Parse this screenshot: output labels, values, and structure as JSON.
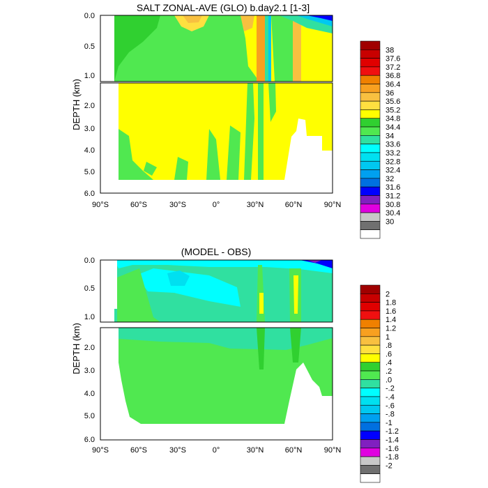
{
  "chart_data": [
    {
      "type": "heatmap",
      "title": "SALT ZONAL-AVE (GLO) b.day2.1 [1-3]",
      "ylabel": "DEPTH (km)",
      "xlabel": "",
      "x_ticks": [
        "90°S",
        "60°S",
        "30°S",
        "0°",
        "30°N",
        "60°N",
        "90°N"
      ],
      "y_ticks_upper": [
        "0.0",
        "0.5",
        "1.0"
      ],
      "y_ticks_lower": [
        "2.0",
        "3.0",
        "4.0",
        "5.0",
        "6.0"
      ],
      "xlim": [
        -90,
        90
      ],
      "ylim_upper_km": [
        0,
        1.1
      ],
      "ylim_lower_km": [
        1.1,
        6.0
      ],
      "legend_position": "right",
      "colorbar": {
        "labels": [
          "38",
          "37.6",
          "37.2",
          "36.8",
          "36.4",
          "36",
          "35.6",
          "35.2",
          "34.8",
          "34.4",
          "34",
          "33.6",
          "33.2",
          "32.8",
          "32.4",
          "32",
          "31.6",
          "31.2",
          "30.8",
          "30.4",
          "30"
        ],
        "colors": [
          "#a00000",
          "#c80000",
          "#e00000",
          "#f01010",
          "#f08000",
          "#f8a020",
          "#f8c040",
          "#ffe040",
          "#ffff00",
          "#30d030",
          "#50e850",
          "#30e0a0",
          "#00ffff",
          "#00e0f0",
          "#00c8f0",
          "#00a0f0",
          "#0070e0",
          "#0000ff",
          "#8020c0",
          "#e000e0",
          "#c8c8c8",
          "#707070",
          "#ffffff"
        ]
      }
    },
    {
      "type": "heatmap",
      "title": "(MODEL - OBS)",
      "ylabel": "DEPTH (km)",
      "xlabel": "",
      "x_ticks": [
        "90°S",
        "60°S",
        "30°S",
        "0°",
        "30°N",
        "60°N",
        "90°N"
      ],
      "y_ticks_upper": [
        "0.0",
        "0.5",
        "1.0"
      ],
      "y_ticks_lower": [
        "2.0",
        "3.0",
        "4.0",
        "5.0",
        "6.0"
      ],
      "xlim": [
        -90,
        90
      ],
      "ylim_upper_km": [
        0,
        1.1
      ],
      "ylim_lower_km": [
        1.1,
        6.0
      ],
      "legend_position": "right",
      "colorbar": {
        "labels": [
          "2",
          "1.8",
          "1.6",
          "1.4",
          "1.2",
          "1",
          ".8",
          ".6",
          ".4",
          ".2",
          ".0",
          "-.2",
          "-.4",
          "-.6",
          "-.8",
          "-1",
          "-1.2",
          "-1.4",
          "-1.6",
          "-1.8",
          "-2"
        ],
        "colors": [
          "#a00000",
          "#c80000",
          "#e00000",
          "#f01010",
          "#f08000",
          "#f8a020",
          "#f8c040",
          "#ffe040",
          "#ffff00",
          "#30d030",
          "#50e850",
          "#30e0a0",
          "#00ffff",
          "#00e0f0",
          "#00c8f0",
          "#00a0f0",
          "#0070e0",
          "#0000ff",
          "#8020c0",
          "#e000e0",
          "#c8c8c8",
          "#707070",
          "#ffffff"
        ]
      }
    }
  ]
}
